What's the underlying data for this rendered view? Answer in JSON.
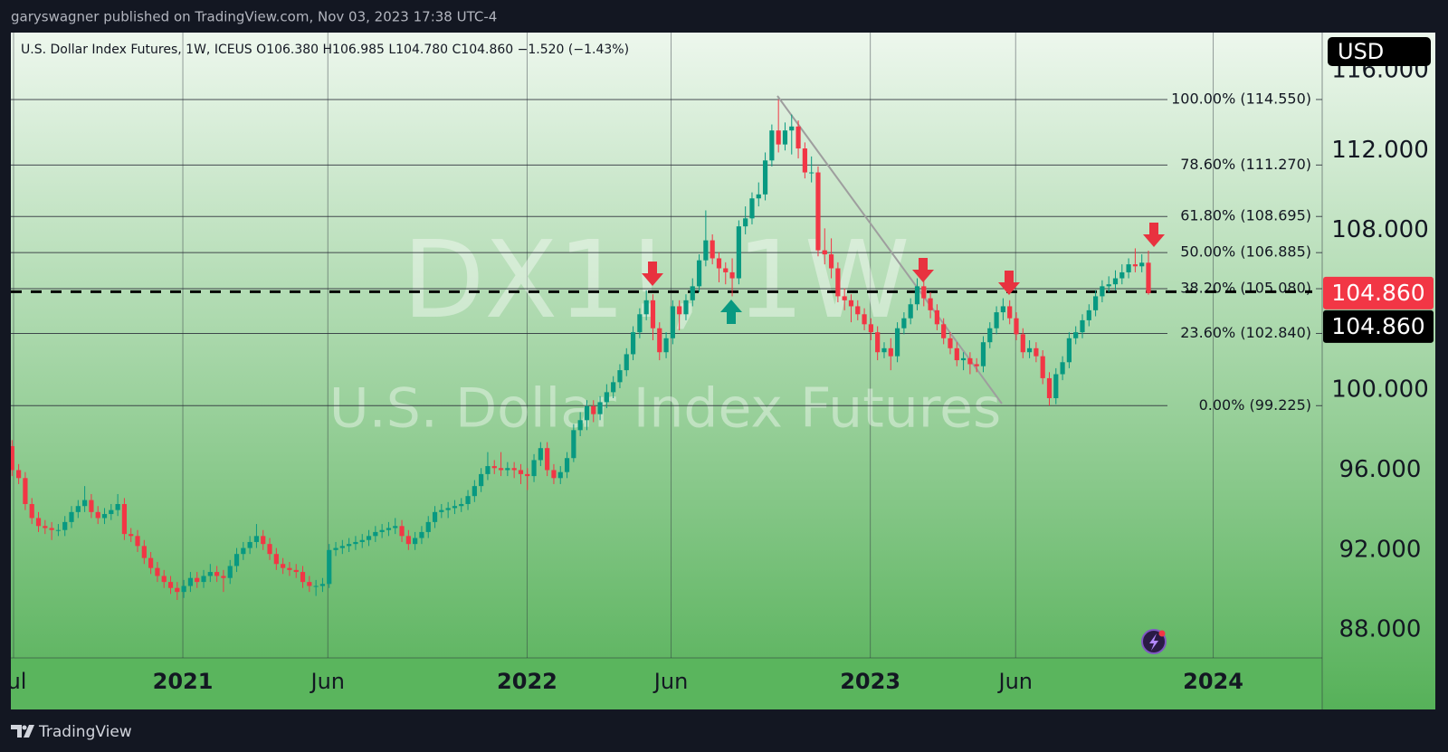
{
  "header": "garyswagner published on TradingView.com, Nov 03, 2023 17:38 UTC-4",
  "footer": "TradingView",
  "chart_data": {
    "type": "candlestick",
    "title": "U.S. Dollar Index Futures, 1W, ICEUS  O106.380  H106.985  L104.780  C104.860  −1.520 (−1.43%)",
    "watermark_symbol": "DX1!, 1W",
    "watermark_name": "U.S. Dollar Index Futures",
    "currency": "USD",
    "up_color": "#089981",
    "down_color": "#f23645",
    "grid": "x",
    "xlim": [
      -0.18,
      198.3
    ],
    "xticks": [
      {
        "value": 0.23,
        "label": "Jul"
      },
      {
        "value": 25.85,
        "label": "2021"
      },
      {
        "value": 47.8,
        "label": "Jun"
      },
      {
        "value": 77.96,
        "label": "2022"
      },
      {
        "value": 99.75,
        "label": "Jun"
      },
      {
        "value": 129.9,
        "label": "2023"
      },
      {
        "value": 151.9,
        "label": "Jun"
      },
      {
        "value": 181.8,
        "label": "2024"
      }
    ],
    "ylim": [
      86.6,
      117.9
    ],
    "yticks": [
      {
        "value": 88,
        "label": "88.000"
      },
      {
        "value": 92,
        "label": "92.000"
      },
      {
        "value": 96,
        "label": "96.000"
      },
      {
        "value": 100,
        "label": "100.000"
      },
      {
        "value": 108,
        "label": "108.000"
      },
      {
        "value": 112,
        "label": "112.000"
      },
      {
        "value": 116,
        "label": "116.000"
      }
    ],
    "fib_levels": [
      {
        "value": 114.55,
        "label": "100.00% (114.550)"
      },
      {
        "value": 111.27,
        "label": "78.60% (111.270)"
      },
      {
        "value": 108.695,
        "label": "61.80% (108.695)"
      },
      {
        "value": 106.885,
        "label": "50.00% (106.885)"
      },
      {
        "value": 105.08,
        "label": "38.20% (105.080)"
      },
      {
        "value": 102.84,
        "label": "23.60% (102.840)"
      },
      {
        "value": 99.225,
        "label": "0.00% (99.225)"
      }
    ],
    "dashed_level": 104.93,
    "price_labels": [
      {
        "value": 104.86,
        "label": "104.860",
        "color": "#f23645"
      },
      {
        "value": 104.86,
        "label": "104.860",
        "color": "#000000"
      }
    ],
    "open": [
      97.2,
      96.0,
      95.6,
      94.3,
      93.6,
      93.2,
      93.1,
      93.0,
      93.0,
      93.4,
      93.9,
      94.2,
      94.5,
      93.9,
      93.6,
      93.8,
      94.0,
      94.3,
      92.8,
      92.7,
      92.2,
      91.6,
      91.1,
      90.7,
      90.4,
      90.1,
      89.9,
      90.2,
      90.6,
      90.4,
      90.7,
      90.9,
      90.7,
      90.6,
      91.2,
      91.8,
      92.1,
      92.4,
      92.7,
      92.3,
      91.8,
      91.3,
      91.1,
      91.0,
      90.9,
      90.4,
      90.2,
      90.2,
      90.3,
      92.0,
      92.1,
      92.2,
      92.3,
      92.4,
      92.5,
      92.7,
      92.9,
      93.0,
      93.1,
      93.2,
      92.7,
      92.3,
      92.6,
      92.9,
      93.4,
      93.9,
      94.0,
      94.1,
      94.2,
      94.3,
      94.7,
      95.2,
      95.8,
      96.2,
      96.1,
      96.0,
      96.1,
      96.0,
      95.8,
      95.7,
      96.5,
      97.1,
      96.0,
      95.6,
      95.9,
      96.6,
      98.0,
      98.5,
      99.2,
      98.8,
      99.4,
      99.9,
      100.4,
      101.0,
      101.8,
      102.9,
      103.8,
      104.5,
      103.1,
      101.9,
      102.6,
      104.2,
      103.8,
      104.5,
      105.2,
      106.5,
      107.5,
      106.6,
      106.1,
      105.9,
      105.6,
      108.2,
      108.6,
      109.6,
      109.8,
      111.5,
      113.0,
      112.3,
      113.0,
      113.2,
      112.1,
      110.9,
      110.9,
      107.0,
      106.8,
      106.1,
      104.7,
      104.5,
      104.2,
      103.8,
      103.3,
      102.9,
      101.9,
      102.1,
      101.7,
      103.1,
      103.6,
      104.3,
      105.2,
      104.6,
      104.0,
      103.3,
      102.6,
      102.1,
      101.5,
      101.6,
      101.3,
      101.2,
      102.4,
      103.1,
      103.9,
      104.2,
      103.6,
      102.8,
      101.9,
      102.1,
      101.7,
      100.6,
      99.6,
      100.8,
      101.4,
      102.6,
      102.9,
      103.5,
      104.0,
      104.7,
      105.2,
      105.3,
      105.6,
      105.9,
      106.3,
      106.2,
      106.38
    ],
    "high": [
      97.5,
      96.3,
      95.9,
      94.6,
      93.9,
      93.5,
      93.4,
      93.3,
      93.7,
      94.2,
      94.5,
      95.2,
      94.8,
      94.2,
      94.1,
      94.3,
      94.8,
      94.6,
      93.1,
      93.0,
      92.5,
      91.9,
      91.4,
      91.0,
      90.7,
      90.4,
      90.5,
      90.9,
      90.9,
      91.0,
      91.3,
      91.2,
      91.0,
      91.5,
      92.1,
      92.4,
      92.7,
      93.3,
      93.0,
      92.6,
      92.1,
      91.6,
      91.4,
      91.3,
      91.2,
      90.7,
      90.5,
      90.6,
      92.3,
      92.4,
      92.5,
      92.6,
      92.7,
      92.8,
      93.0,
      93.2,
      93.3,
      93.4,
      93.6,
      93.5,
      93.0,
      92.9,
      93.2,
      93.7,
      94.2,
      94.3,
      94.4,
      94.5,
      94.6,
      95.0,
      95.5,
      96.1,
      96.9,
      96.5,
      96.9,
      96.4,
      96.4,
      96.3,
      96.1,
      96.8,
      97.4,
      97.4,
      96.3,
      96.2,
      96.9,
      98.3,
      98.9,
      99.5,
      99.5,
      99.7,
      100.3,
      100.7,
      101.3,
      102.1,
      103.2,
      104.1,
      105.0,
      104.8,
      103.4,
      102.9,
      104.5,
      104.5,
      104.8,
      105.6,
      106.8,
      109.0,
      107.8,
      106.9,
      106.4,
      106.6,
      108.5,
      109.2,
      109.9,
      110.4,
      111.9,
      113.3,
      114.55,
      113.4,
      113.8,
      113.5,
      112.4,
      111.7,
      111.2,
      108.1,
      107.6,
      106.4,
      105.1,
      104.8,
      104.5,
      104.1,
      103.6,
      103.2,
      102.4,
      102.6,
      103.4,
      103.9,
      104.6,
      105.6,
      105.5,
      104.9,
      104.3,
      103.6,
      102.9,
      102.4,
      101.9,
      101.9,
      101.6,
      102.7,
      103.4,
      104.2,
      104.6,
      104.5,
      103.9,
      103.1,
      102.5,
      102.4,
      102.0,
      100.9,
      101.1,
      101.7,
      102.9,
      103.2,
      103.8,
      104.3,
      105.0,
      105.5,
      105.7,
      106.0,
      106.3,
      106.6,
      107.1,
      106.8,
      106.985
    ],
    "low": [
      95.7,
      95.3,
      94.0,
      93.3,
      92.9,
      92.8,
      92.5,
      92.7,
      92.7,
      93.1,
      93.6,
      93.9,
      93.6,
      93.3,
      93.3,
      93.5,
      93.7,
      92.5,
      92.4,
      91.9,
      91.3,
      90.8,
      90.4,
      90.1,
      89.8,
      89.5,
      89.6,
      89.9,
      90.1,
      90.1,
      90.4,
      90.4,
      89.9,
      90.3,
      90.9,
      91.5,
      91.8,
      92.1,
      92.0,
      91.5,
      91.0,
      90.8,
      90.7,
      90.6,
      90.1,
      89.9,
      89.7,
      89.9,
      90.1,
      91.7,
      91.8,
      91.9,
      92.0,
      92.1,
      92.2,
      92.4,
      92.6,
      92.7,
      92.8,
      92.4,
      92.0,
      92.0,
      92.3,
      92.6,
      93.1,
      93.6,
      93.6,
      93.8,
      93.9,
      94.0,
      94.4,
      94.9,
      95.5,
      95.8,
      95.7,
      95.7,
      95.6,
      95.3,
      95.0,
      95.4,
      96.2,
      95.7,
      95.3,
      95.3,
      95.6,
      96.4,
      97.7,
      98.0,
      98.4,
      98.5,
      99.1,
      99.6,
      100.1,
      100.7,
      101.5,
      102.6,
      103.5,
      102.5,
      101.5,
      101.6,
      102.3,
      103.0,
      103.5,
      104.2,
      104.9,
      106.2,
      106.3,
      105.4,
      105.3,
      104.7,
      105.3,
      107.8,
      108.3,
      109.2,
      109.5,
      111.2,
      111.9,
      112.0,
      111.8,
      111.6,
      110.6,
      110.4,
      106.7,
      106.3,
      105.6,
      104.4,
      104.0,
      103.4,
      103.5,
      103.0,
      102.5,
      101.5,
      101.6,
      101.0,
      101.4,
      102.8,
      103.3,
      104.0,
      104.2,
      103.6,
      103.0,
      102.3,
      101.8,
      101.2,
      101.0,
      100.8,
      100.9,
      100.9,
      102.1,
      102.8,
      103.5,
      103.3,
      102.5,
      101.6,
      101.6,
      101.4,
      100.3,
      99.23,
      99.3,
      100.5,
      101.1,
      102.3,
      102.6,
      103.2,
      103.7,
      104.4,
      104.9,
      105.0,
      105.3,
      105.6,
      105.9,
      105.9,
      104.78
    ],
    "close": [
      96.0,
      95.6,
      94.3,
      93.6,
      93.2,
      93.1,
      93.0,
      93.0,
      93.4,
      93.9,
      94.2,
      94.5,
      93.9,
      93.6,
      93.8,
      94.0,
      94.3,
      92.8,
      92.7,
      92.2,
      91.6,
      91.1,
      90.7,
      90.4,
      90.1,
      89.9,
      90.2,
      90.6,
      90.4,
      90.7,
      90.9,
      90.7,
      90.6,
      91.2,
      91.8,
      92.1,
      92.4,
      92.7,
      92.3,
      91.8,
      91.3,
      91.1,
      91.0,
      90.9,
      90.4,
      90.2,
      90.2,
      90.3,
      92.0,
      92.1,
      92.2,
      92.3,
      92.4,
      92.5,
      92.7,
      92.9,
      93.0,
      93.1,
      93.2,
      92.7,
      92.3,
      92.6,
      92.9,
      93.4,
      93.9,
      94.0,
      94.1,
      94.2,
      94.3,
      94.7,
      95.2,
      95.8,
      96.2,
      96.1,
      96.0,
      96.1,
      96.0,
      95.8,
      95.7,
      96.5,
      97.1,
      96.0,
      95.6,
      95.9,
      96.6,
      98.0,
      98.5,
      99.2,
      98.8,
      99.4,
      99.9,
      100.4,
      101.0,
      101.8,
      102.9,
      103.8,
      104.5,
      103.1,
      101.9,
      102.6,
      104.2,
      103.8,
      104.5,
      105.2,
      106.5,
      107.5,
      106.6,
      106.1,
      105.9,
      105.6,
      108.2,
      108.6,
      109.6,
      109.8,
      111.5,
      113.0,
      112.3,
      113.0,
      113.2,
      112.1,
      110.9,
      110.9,
      107.0,
      106.8,
      106.1,
      104.7,
      104.5,
      104.2,
      103.8,
      103.3,
      102.9,
      101.9,
      102.1,
      101.7,
      103.1,
      103.6,
      104.3,
      105.2,
      104.6,
      104.0,
      103.3,
      102.6,
      102.1,
      101.5,
      101.6,
      101.3,
      101.2,
      102.4,
      103.1,
      103.9,
      104.2,
      103.6,
      102.8,
      101.9,
      102.1,
      101.7,
      100.6,
      99.6,
      100.8,
      101.4,
      102.6,
      102.9,
      103.5,
      104.0,
      104.7,
      105.2,
      105.3,
      105.6,
      105.9,
      106.3,
      106.2,
      106.38,
      104.86
    ]
  }
}
